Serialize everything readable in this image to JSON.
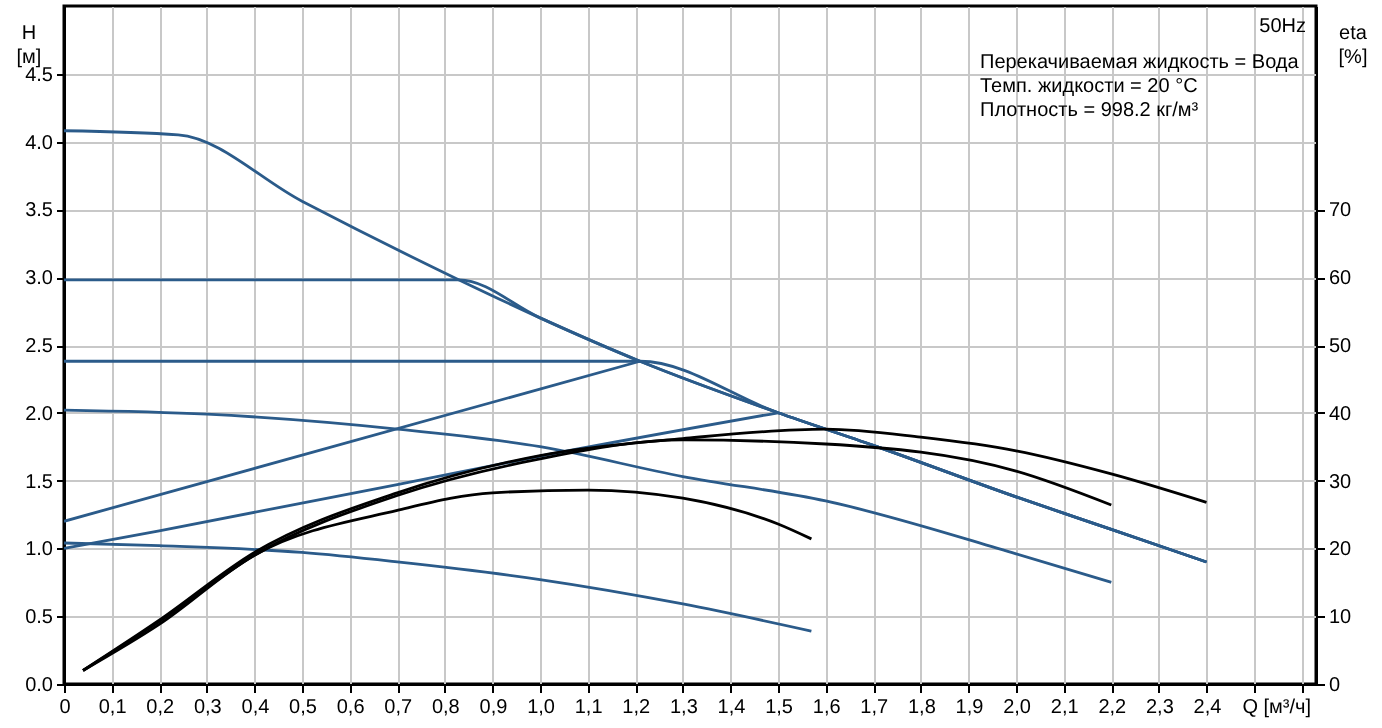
{
  "chart_data": {
    "type": "line",
    "title": "50Hz",
    "xlabel": "Q [м³/ч]",
    "ylabel": "H [м]",
    "y2label": "eta [%]",
    "annotations": [
      "Перекачиваемая жидкость = Вода",
      "Темп. жидкости = 20 °C",
      "Плотность = 998.2 кг/м³"
    ],
    "xlim": [
      0,
      2.63
    ],
    "ylim": [
      0,
      5
    ],
    "y2lim": [
      0,
      100
    ],
    "xticks": [
      0,
      {
        "value": 0.1,
        "label": "0,1"
      },
      {
        "value": 0.2,
        "label": "0,2"
      },
      {
        "value": 0.3,
        "label": "0,3"
      },
      {
        "value": 0.4,
        "label": "0,4"
      },
      {
        "value": 0.5,
        "label": "0,5"
      },
      {
        "value": 0.6,
        "label": "0,6"
      },
      {
        "value": 0.7,
        "label": "0,7"
      },
      {
        "value": 0.8,
        "label": "0,8"
      },
      {
        "value": 0.9,
        "label": "0,9"
      },
      {
        "value": 1.0,
        "label": "1,0"
      },
      {
        "value": 1.1,
        "label": "1,1"
      },
      {
        "value": 1.2,
        "label": "1,2"
      },
      {
        "value": 1.3,
        "label": "1,3"
      },
      {
        "value": 1.4,
        "label": "1,4"
      },
      {
        "value": 1.5,
        "label": "1,5"
      },
      {
        "value": 1.6,
        "label": "1,6"
      },
      {
        "value": 1.7,
        "label": "1,7"
      },
      {
        "value": 1.8,
        "label": "1,8"
      },
      {
        "value": 1.9,
        "label": "1,9"
      },
      {
        "value": 2.0,
        "label": "2,0"
      },
      {
        "value": 2.1,
        "label": "2,1"
      },
      {
        "value": 2.2,
        "label": "2,2"
      },
      {
        "value": 2.3,
        "label": "2,3"
      },
      {
        "value": 2.4,
        "label": "2,4"
      },
      {
        "value": 2.5,
        "label": null
      },
      {
        "value": 2.6,
        "label": null
      }
    ],
    "yticks": [
      {
        "value": 0,
        "label": "0.0"
      },
      0.5,
      {
        "value": 1,
        "label": "1.0"
      },
      1.5,
      {
        "value": 2,
        "label": "2.0"
      },
      2.5,
      {
        "value": 3,
        "label": "3.0"
      },
      3.5,
      {
        "value": 4,
        "label": "4.0"
      },
      4.5
    ],
    "y2ticks": [
      0,
      10,
      20,
      30,
      40,
      50,
      60,
      70
    ],
    "grid": true,
    "marker": "none",
    "line_style": "solid",
    "series": [
      {
        "color": "#2b5b8a",
        "x": [
          0,
          0.24,
          0.5,
          0.83,
          1.0,
          1.21,
          1.5,
          1.7,
          2.0,
          2.2,
          2.4
        ],
        "values": [
          4.08,
          4.05,
          3.56,
          2.98,
          2.7,
          2.38,
          2.0,
          1.76,
          1.38,
          1.14,
          0.9
        ]
      },
      {
        "color": "#2b5b8a",
        "x": [
          0,
          0.83,
          1.0,
          1.21,
          1.5,
          1.7,
          2.0,
          2.2,
          2.4
        ],
        "values": [
          2.98,
          2.98,
          2.7,
          2.38,
          2.0,
          1.76,
          1.38,
          1.14,
          0.9
        ]
      },
      {
        "color": "#2b5b8a",
        "x": [
          0,
          1.21,
          1.5,
          1.7,
          2.0,
          2.2,
          2.4
        ],
        "values": [
          2.38,
          2.38,
          2.0,
          1.76,
          1.38,
          1.14,
          0.9
        ]
      },
      {
        "color": "#2b5b8a",
        "x": [
          0,
          1.21
        ],
        "values": [
          1.2,
          2.38
        ]
      },
      {
        "color": "#2b5b8a",
        "x": [
          0,
          0.2,
          0.7,
          1.0,
          1.5
        ],
        "values": [
          1.0,
          1.13,
          1.47,
          1.68,
          2.0
        ]
      },
      {
        "color": "#2b5b8a",
        "x": [
          0,
          0.3,
          0.7,
          1.0,
          1.3,
          1.6,
          2.0,
          2.2
        ],
        "values": [
          2.02,
          1.99,
          1.88,
          1.75,
          1.53,
          1.35,
          0.96,
          0.75
        ]
      },
      {
        "color": "#2b5b8a",
        "x": [
          0,
          0.2,
          0.5,
          0.7,
          1.0,
          1.3,
          1.57
        ],
        "values": [
          1.04,
          1.02,
          0.97,
          0.9,
          0.77,
          0.59,
          0.39
        ]
      },
      {
        "color": "#000000",
        "axis": "y2",
        "x": [
          0.04,
          0.2,
          0.4,
          0.7,
          1.0,
          1.3,
          1.6,
          1.8,
          2.0,
          2.2,
          2.4
        ],
        "values": [
          2,
          9.4,
          19.4,
          28.2,
          33.7,
          36.2,
          37.6,
          36.4,
          34.4,
          31,
          26.8
        ]
      },
      {
        "color": "#000000",
        "axis": "y2",
        "x": [
          0.04,
          0.2,
          0.4,
          0.7,
          1.0,
          1.3,
          1.6,
          2.0,
          2.2
        ],
        "values": [
          2,
          9.2,
          19,
          27.8,
          33.2,
          36,
          35.4,
          31.4,
          26.4
        ]
      },
      {
        "color": "#000000",
        "axis": "y2",
        "x": [
          0.04,
          0.2,
          0.4,
          0.7,
          0.9,
          1.1,
          1.3,
          1.5,
          1.57
        ],
        "values": [
          2,
          8.8,
          19,
          25.6,
          28.2,
          28.6,
          27.4,
          23.6,
          21.4
        ]
      }
    ]
  }
}
